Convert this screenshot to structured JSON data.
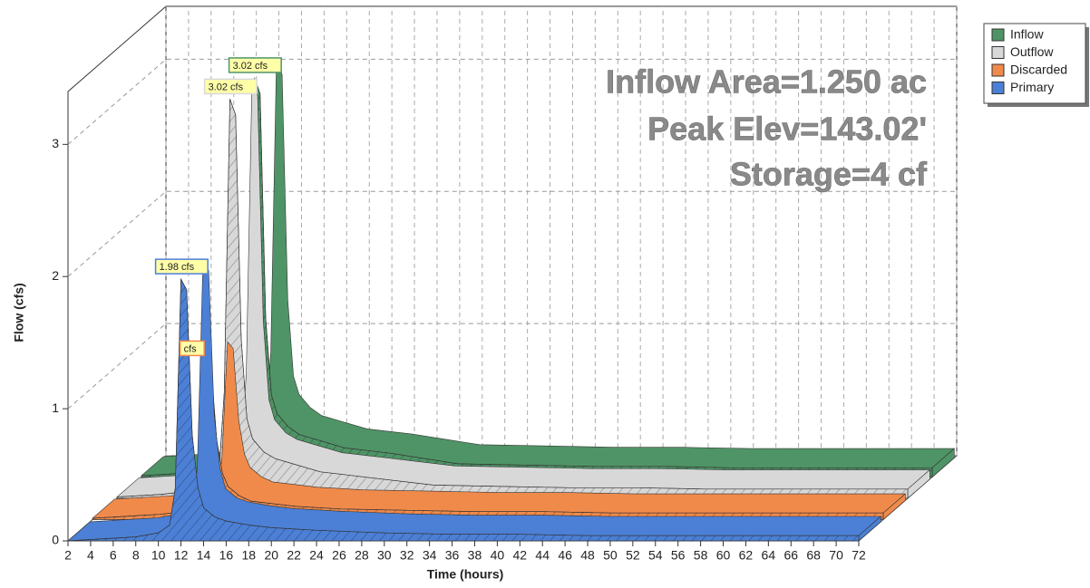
{
  "chart_data": {
    "type": "area3d",
    "xlabel": "Time  (hours)",
    "ylabel": "Flow  (cfs)",
    "annotations": [
      "Inflow Area=1.250 ac",
      "Peak Elev=143.02'",
      "Storage=4 cf"
    ],
    "x": [
      2,
      4,
      6,
      8,
      10,
      11,
      11.5,
      12,
      12.5,
      13,
      13.5,
      14,
      15,
      16,
      18,
      20,
      22,
      24,
      30,
      36,
      42,
      48,
      54,
      60,
      66,
      72
    ],
    "series": [
      {
        "name": "Inflow",
        "color": "#4f9466",
        "values": [
          0.01,
          0.02,
          0.03,
          0.05,
          0.08,
          0.15,
          0.8,
          3.02,
          2.9,
          1.2,
          0.62,
          0.48,
          0.38,
          0.32,
          0.27,
          0.22,
          0.2,
          0.18,
          0.1,
          0.09,
          0.08,
          0.08,
          0.07,
          0.07,
          0.07,
          0.07
        ],
        "value_labels": [
          null,
          null,
          null,
          null,
          null,
          null,
          null,
          "3.02 cfs",
          null,
          null,
          null,
          null,
          null,
          null,
          null,
          null,
          null,
          null,
          null,
          null,
          null,
          null,
          null,
          null,
          null,
          null
        ]
      },
      {
        "name": "Outflow",
        "color": "#d8d8d8",
        "values": [
          0.01,
          0.02,
          0.03,
          0.05,
          0.08,
          0.15,
          0.8,
          3.02,
          2.9,
          1.2,
          0.6,
          0.45,
          0.35,
          0.3,
          0.25,
          0.2,
          0.18,
          0.16,
          0.1,
          0.09,
          0.08,
          0.08,
          0.07,
          0.07,
          0.07,
          0.07
        ],
        "value_labels": [
          null,
          null,
          null,
          null,
          null,
          null,
          null,
          "3.02 cfs",
          null,
          null,
          null,
          null,
          null,
          null,
          null,
          null,
          null,
          null,
          null,
          null,
          null,
          null,
          null,
          null,
          null,
          null
        ]
      },
      {
        "name": "Discarded",
        "color": "#f08a4b",
        "values": [
          0.01,
          0.02,
          0.03,
          0.04,
          0.06,
          0.1,
          0.3,
          1.2,
          1.15,
          0.6,
          0.35,
          0.25,
          0.18,
          0.14,
          0.12,
          0.1,
          0.09,
          0.08,
          0.07,
          0.06,
          0.06,
          0.05,
          0.05,
          0.05,
          0.05,
          0.05
        ],
        "value_labels": [
          null,
          null,
          null,
          null,
          null,
          null,
          null,
          "cfs",
          null,
          null,
          null,
          null,
          null,
          null,
          null,
          null,
          null,
          null,
          null,
          null,
          null,
          null,
          null,
          null,
          null,
          null
        ]
      },
      {
        "name": "Primary",
        "color": "#4c80d6",
        "values": [
          0,
          0.01,
          0.02,
          0.03,
          0.06,
          0.12,
          0.4,
          1.98,
          1.9,
          0.8,
          0.4,
          0.25,
          0.18,
          0.15,
          0.12,
          0.1,
          0.09,
          0.08,
          0.06,
          0.05,
          0.05,
          0.04,
          0.04,
          0.04,
          0.04,
          0.04
        ],
        "value_labels": [
          null,
          null,
          null,
          null,
          null,
          null,
          null,
          "1.98 cfs",
          null,
          null,
          null,
          null,
          null,
          null,
          null,
          null,
          null,
          null,
          null,
          null,
          null,
          null,
          null,
          null,
          null,
          null
        ]
      }
    ],
    "xlim": [
      2,
      72
    ],
    "ylim": [
      0,
      3.4
    ],
    "xticks": [
      2,
      4,
      6,
      8,
      10,
      12,
      14,
      16,
      18,
      20,
      22,
      24,
      26,
      28,
      30,
      32,
      34,
      36,
      38,
      40,
      42,
      44,
      46,
      48,
      50,
      52,
      54,
      56,
      58,
      60,
      62,
      64,
      66,
      68,
      70,
      72
    ],
    "yticks": [
      0,
      1,
      2,
      3
    ],
    "grid": true,
    "legend": "top-right"
  }
}
